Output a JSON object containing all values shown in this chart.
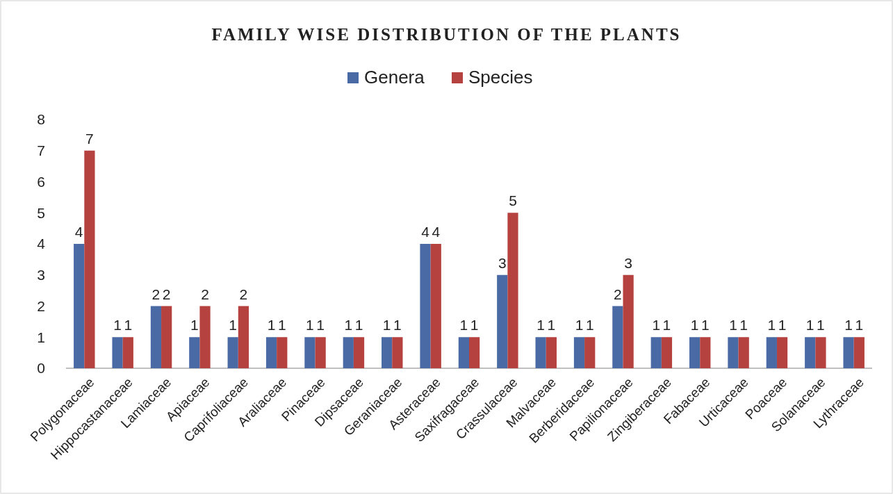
{
  "chart_data": {
    "type": "bar",
    "title": "FAMILY WISE DISTRIBUTION OF THE PLANTS",
    "categories": [
      "Polygonaceae",
      "Hippocastanaceae",
      "Lamiaceae",
      "Apiaceae",
      "Caprifoliaceae",
      "Araliaceae",
      "Pinaceae",
      "Dipsaceae",
      "Geraniaceae",
      "Asteraceae",
      "Saxifragaceae",
      "Crassulaceae",
      "Malvaceae",
      "Berberidaceae",
      "Papilionaceae",
      "Zingiberaceae",
      "Fabaceae",
      "Urticaceae",
      "Poaceae",
      "Solanaceae",
      "Lythraceae"
    ],
    "series": [
      {
        "name": "Genera",
        "color": "#4a6aa5",
        "values": [
          4,
          1,
          2,
          1,
          1,
          1,
          1,
          1,
          1,
          4,
          1,
          3,
          1,
          1,
          2,
          1,
          1,
          1,
          1,
          1,
          1
        ]
      },
      {
        "name": "Species",
        "color": "#b5423f",
        "values": [
          7,
          1,
          2,
          2,
          2,
          1,
          1,
          1,
          1,
          4,
          1,
          5,
          1,
          1,
          3,
          1,
          1,
          1,
          1,
          1,
          1
        ]
      }
    ],
    "ylim": [
      0,
      8
    ],
    "yticks": [
      0,
      1,
      2,
      3,
      4,
      5,
      6,
      7,
      8
    ],
    "grid": false,
    "legend": "top",
    "data_labels": true
  }
}
